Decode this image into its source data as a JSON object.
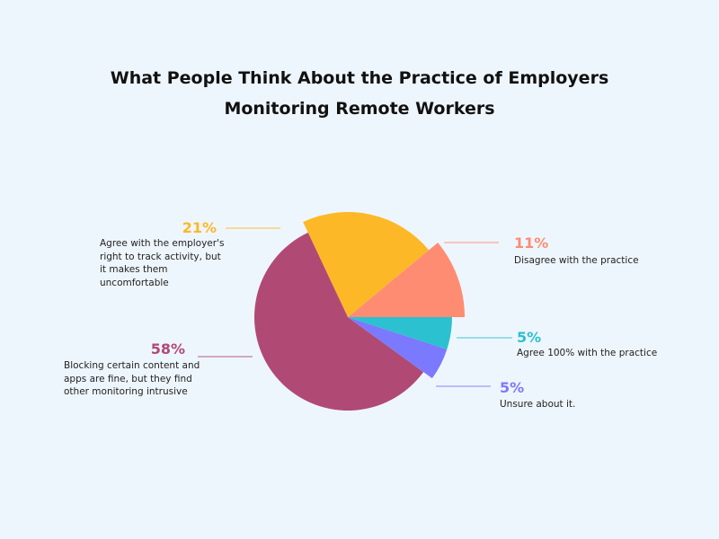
{
  "chart_data": {
    "type": "pie",
    "title": "What People Think About the Practice of Employers Monitoring Remote Workers",
    "slices": [
      {
        "label": "Disagree with the practice",
        "value": 11,
        "value_label": "11%",
        "color": "#fe8c72"
      },
      {
        "label": "Agree with the employer's right to track activity, but it makes them uncomfortable",
        "value": 21,
        "value_label": "21%",
        "color": "#fdb827"
      },
      {
        "label": "Blocking certain content and apps are fine, but they find other monitoring intrusive",
        "value": 58,
        "value_label": "58%",
        "color": "#b04a74"
      },
      {
        "label": "Unsure about it.",
        "value": 5,
        "value_label": "5%",
        "color": "#7b79fe"
      },
      {
        "label": "Agree 100% with the practice",
        "value": 5,
        "value_label": "5%",
        "color": "#2bc1d0"
      }
    ],
    "legend": "callout labels"
  }
}
